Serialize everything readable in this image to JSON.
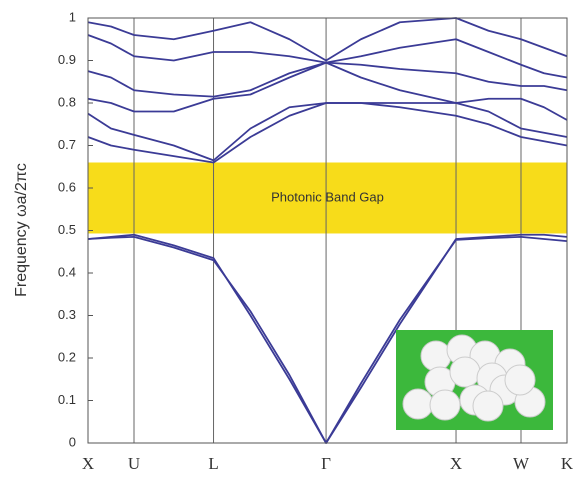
{
  "chart_data": {
    "type": "line",
    "y_label": "Frequency ωa/2πc",
    "color": "#3b3b96",
    "x": [
      0,
      0.177,
      0.354,
      0.66,
      0.966,
      1.25,
      1.55,
      1.832,
      2.1,
      2.4,
      2.832,
      3.082,
      3.332,
      3.509,
      3.686
    ],
    "xlim": [
      0,
      3.686
    ],
    "xticks": [
      {
        "value": 0,
        "label": "X"
      },
      {
        "value": 0.354,
        "label": "U"
      },
      {
        "value": 0.966,
        "label": "L"
      },
      {
        "value": 1.832,
        "label": "Γ"
      },
      {
        "value": 2.832,
        "label": "X"
      },
      {
        "value": 3.332,
        "label": "W"
      },
      {
        "value": 3.686,
        "label": "K"
      }
    ],
    "ylim": [
      0,
      1
    ],
    "yticks": [
      0,
      0.1,
      0.2,
      0.3,
      0.4,
      0.5,
      0.6,
      0.7,
      0.8,
      0.9,
      1
    ],
    "series": [
      {
        "values": [
          0.48,
          0.485,
          0.49,
          0.465,
          0.435,
          0.3,
          0.15,
          0,
          0.13,
          0.28,
          0.48,
          0.485,
          0.49,
          0.49,
          0.485
        ]
      },
      {
        "values": [
          0.48,
          0.483,
          0.485,
          0.46,
          0.43,
          0.31,
          0.16,
          0,
          0.14,
          0.29,
          0.478,
          0.482,
          0.485,
          0.48,
          0.475
        ]
      },
      {
        "values": [
          0.72,
          0.7,
          0.69,
          0.675,
          0.66,
          0.72,
          0.77,
          0.8,
          0.8,
          0.79,
          0.77,
          0.75,
          0.72,
          0.71,
          0.7
        ]
      },
      {
        "values": [
          0.775,
          0.74,
          0.725,
          0.7,
          0.665,
          0.74,
          0.79,
          0.8,
          0.8,
          0.8,
          0.8,
          0.78,
          0.74,
          0.73,
          0.72
        ]
      },
      {
        "values": [
          0.81,
          0.8,
          0.78,
          0.78,
          0.81,
          0.82,
          0.86,
          0.895,
          0.86,
          0.83,
          0.8,
          0.81,
          0.81,
          0.79,
          0.76
        ]
      },
      {
        "values": [
          0.875,
          0.86,
          0.83,
          0.82,
          0.815,
          0.83,
          0.87,
          0.895,
          0.89,
          0.88,
          0.87,
          0.85,
          0.84,
          0.84,
          0.83
        ]
      },
      {
        "values": [
          0.96,
          0.94,
          0.91,
          0.9,
          0.92,
          0.92,
          0.91,
          0.895,
          0.91,
          0.93,
          0.95,
          0.92,
          0.89,
          0.87,
          0.86
        ]
      },
      {
        "values": [
          0.99,
          0.98,
          0.96,
          0.95,
          0.97,
          0.99,
          0.95,
          0.9,
          0.95,
          0.99,
          1,
          0.97,
          0.95,
          0.93,
          0.91
        ]
      }
    ],
    "band_gap": {
      "range": [
        0.493,
        0.66
      ],
      "label": "Photonic Band Gap",
      "color": "#f7dc1a"
    }
  }
}
